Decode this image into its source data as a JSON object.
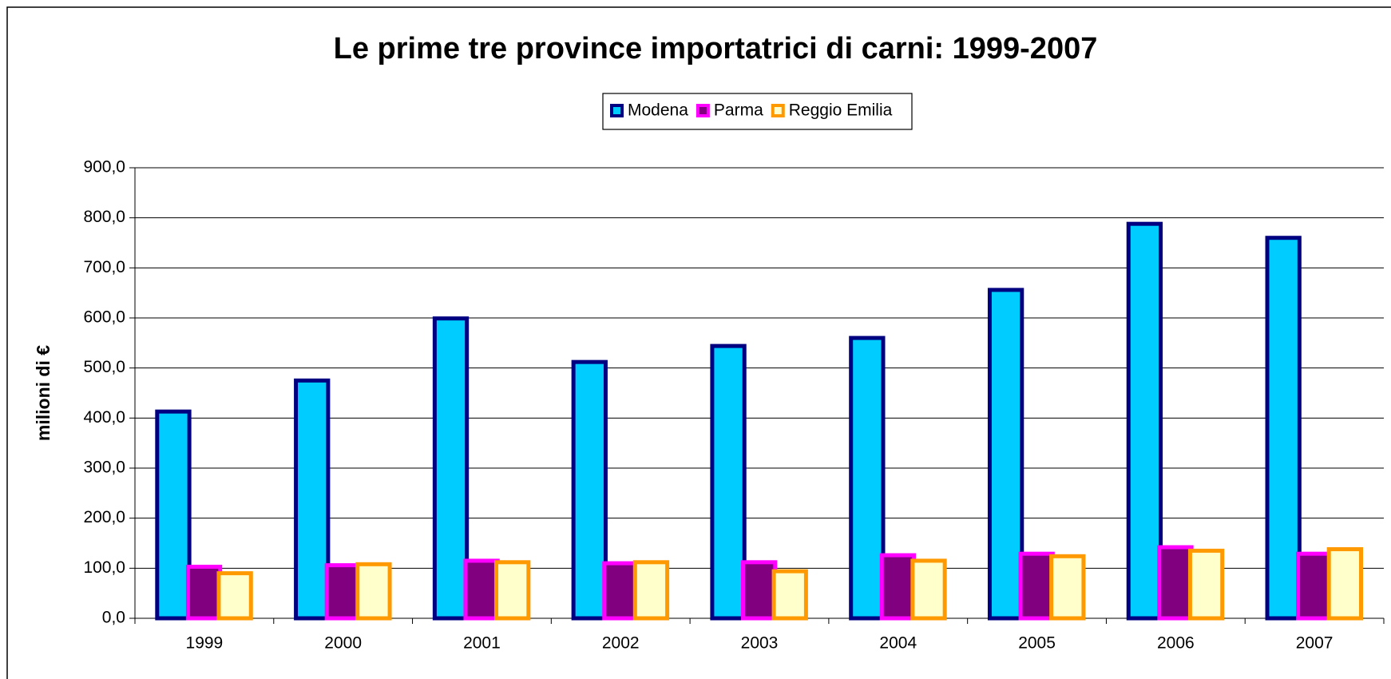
{
  "chart_data": {
    "type": "bar",
    "title": "Le prime tre province importatrici di carni: 1999-2007",
    "y_label": "milioni di €",
    "categories": [
      "1999",
      "2000",
      "2001",
      "2002",
      "2003",
      "2004",
      "2005",
      "2006",
      "2007"
    ],
    "series": [
      {
        "name": "Modena",
        "color": "#00ccff",
        "border": "#000080",
        "values": [
          413,
          475,
          599,
          512,
          544,
          560,
          656,
          788,
          760
        ]
      },
      {
        "name": "Parma",
        "color": "#800080",
        "border": "#ff00ff",
        "values": [
          103,
          106,
          115,
          110,
          112,
          126,
          129,
          142,
          129
        ]
      },
      {
        "name": "Reggio Emilia",
        "color": "#ffffcc",
        "border": "#ff9900",
        "values": [
          90,
          108,
          112,
          112,
          94,
          115,
          124,
          135,
          138
        ]
      }
    ],
    "ylim": [
      0,
      900
    ],
    "yticks": [
      {
        "value": 0,
        "label": "0,0"
      },
      {
        "value": 100,
        "label": "100,0"
      },
      {
        "value": 200,
        "label": "200,0"
      },
      {
        "value": 300,
        "label": "300,0"
      },
      {
        "value": 400,
        "label": "400,0"
      },
      {
        "value": 500,
        "label": "500,0"
      },
      {
        "value": 600,
        "label": "600,0"
      },
      {
        "value": 700,
        "label": "700,0"
      },
      {
        "value": 800,
        "label": "800,0"
      },
      {
        "value": 900,
        "label": "900,0"
      }
    ],
    "grid": true
  }
}
